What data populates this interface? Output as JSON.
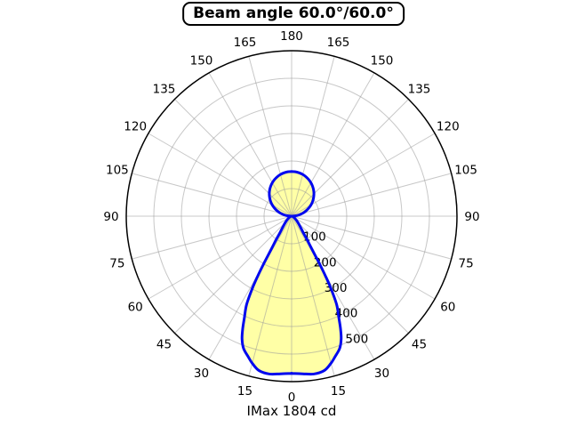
{
  "title": "Beam angle 60.0°/60.0°",
  "caption": "IMax 1804 cd",
  "colors": {
    "curve": "#0008ee",
    "fill": "#ffffa6",
    "grid": "#9a9a9a",
    "axis": "#000000",
    "background": "#ffffff",
    "text": "#000000"
  },
  "chart_data": {
    "type": "polar",
    "title": "Beam angle 60.0°/60.0°",
    "caption": "IMax 1804 cd",
    "imax_cd": 1804,
    "beam_angle_deg": [
      60.0,
      60.0
    ],
    "units": "cd",
    "grid": true,
    "angle_tick_step_deg": 15,
    "angle_labels_deg": [
      0,
      15,
      30,
      45,
      60,
      75,
      90,
      105,
      120,
      135,
      150,
      165,
      180
    ],
    "radial_ticks_cd": [
      100,
      200,
      300,
      400,
      500
    ],
    "r_max_cd": 600,
    "rlabel_angle_deg": 22.5,
    "lobes": [
      {
        "name": "main-beam-down",
        "direction": "down",
        "symmetric": true,
        "points_deg_cd": [
          [
            0,
            570
          ],
          [
            4,
            573
          ],
          [
            8,
            578
          ],
          [
            12,
            572
          ],
          [
            15,
            552
          ],
          [
            17,
            535
          ],
          [
            20,
            510
          ],
          [
            22,
            480
          ],
          [
            23.5,
            445
          ],
          [
            25,
            405
          ],
          [
            27,
            360
          ],
          [
            28.5,
            300
          ],
          [
            29.5,
            250
          ],
          [
            30.3,
            205
          ],
          [
            31,
            165
          ],
          [
            32,
            130
          ],
          [
            33.5,
            100
          ],
          [
            35,
            75
          ],
          [
            37,
            60
          ],
          [
            40,
            46
          ],
          [
            44,
            34
          ],
          [
            50,
            22
          ],
          [
            57,
            13
          ],
          [
            64,
            8
          ],
          [
            72,
            4
          ],
          [
            81,
            1.5
          ],
          [
            90,
            0
          ]
        ]
      },
      {
        "name": "back-lobe-up",
        "direction": "up",
        "symmetric": true,
        "points_deg_cd": [
          [
            90,
            0
          ],
          [
            95,
            14
          ],
          [
            100,
            28
          ],
          [
            105,
            42
          ],
          [
            110,
            55
          ],
          [
            115,
            68
          ],
          [
            120,
            81
          ],
          [
            125,
            93
          ],
          [
            130,
            104
          ],
          [
            135,
            114.5
          ],
          [
            140,
            124
          ],
          [
            145,
            132.5
          ],
          [
            150,
            140
          ],
          [
            155,
            146.5
          ],
          [
            160,
            152
          ],
          [
            165,
            156.5
          ],
          [
            170,
            159.5
          ],
          [
            175,
            161.5
          ],
          [
            180,
            162
          ]
        ]
      }
    ]
  }
}
